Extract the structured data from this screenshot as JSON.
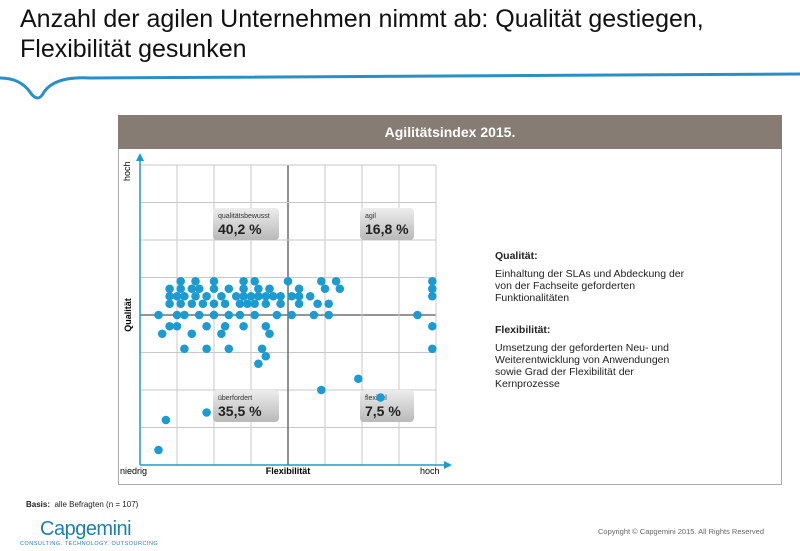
{
  "chart_data": {
    "type": "scatter",
    "title": "Anzahl der agilen Unternehmen nimmt ab: Qualität gestiegen, Flexibilität gesunken",
    "subtitle": "Agilitätsindex 2015.",
    "x_label": "Flexibilität",
    "y_label": "Qualität",
    "x_axis_ends": [
      "niedrig",
      "hoch"
    ],
    "y_axis_end": "hoch",
    "xlim": [
      0,
      8
    ],
    "ylim": [
      0,
      8
    ],
    "grid": true,
    "color": "#1a9bd1",
    "x": [
      1.1,
      1.5,
      2.0,
      2.8,
      3.1,
      4.0,
      4.9,
      5.3,
      7.9,
      0.8,
      1.1,
      1.4,
      1.6,
      2.0,
      2.4,
      2.8,
      3.2,
      3.5,
      4.3,
      5.0,
      5.4,
      7.9,
      0.8,
      1.0,
      1.2,
      1.5,
      1.8,
      2.2,
      2.6,
      2.8,
      3.0,
      3.2,
      3.4,
      3.6,
      3.8,
      4.1,
      4.3,
      4.6,
      7.9,
      0.8,
      1.1,
      1.4,
      1.7,
      2.0,
      2.3,
      2.7,
      2.9,
      3.1,
      3.4,
      3.8,
      4.3,
      4.8,
      5.1,
      0.5,
      1.0,
      1.2,
      1.6,
      2.0,
      2.4,
      2.7,
      3.1,
      3.7,
      4.1,
      4.7,
      5.1,
      7.5,
      0.8,
      1.0,
      1.8,
      2.3,
      2.8,
      3.4,
      7.9,
      0.6,
      1.4,
      2.2,
      3.5,
      1.2,
      1.8,
      2.4,
      3.3,
      7.9,
      3.4,
      3.2,
      5.9,
      4.9,
      6.5,
      1.8,
      0.7,
      0.5
    ],
    "y": [
      4.9,
      4.9,
      4.9,
      4.9,
      4.9,
      4.9,
      4.9,
      4.9,
      4.9,
      4.7,
      4.7,
      4.7,
      4.7,
      4.7,
      4.7,
      4.7,
      4.7,
      4.7,
      4.7,
      4.7,
      4.7,
      4.7,
      4.5,
      4.5,
      4.5,
      4.5,
      4.5,
      4.5,
      4.5,
      4.5,
      4.5,
      4.5,
      4.5,
      4.5,
      4.5,
      4.5,
      4.5,
      4.5,
      4.5,
      4.3,
      4.3,
      4.3,
      4.3,
      4.3,
      4.3,
      4.3,
      4.3,
      4.3,
      4.3,
      4.3,
      4.3,
      4.3,
      4.3,
      4.0,
      4.0,
      4.0,
      4.0,
      4.0,
      4.0,
      4.0,
      4.0,
      4.0,
      4.0,
      4.0,
      4.0,
      4.0,
      3.7,
      3.7,
      3.7,
      3.7,
      3.7,
      3.7,
      3.7,
      3.5,
      3.5,
      3.5,
      3.5,
      3.1,
      3.1,
      3.1,
      3.1,
      3.1,
      2.9,
      2.7,
      2.3,
      2.0,
      1.8,
      1.4,
      1.2,
      0.4
    ],
    "annotations": [
      {
        "label": "qualitätsbewusst",
        "value": "40,2 %"
      },
      {
        "label": "agil",
        "value": "16,8 %"
      },
      {
        "label": "überfordert",
        "value": "35,5 %"
      },
      {
        "label": "flexibel",
        "value": "7,5 %"
      }
    ],
    "notes": [
      {
        "heading": "Qualität:",
        "text": "Einhaltung der SLAs und Abdeckung der von der Fachseite geforderten Funktionalitäten"
      },
      {
        "heading": "Flexibilität:",
        "text": "Umsetzung  der geforderten Neu- und Weiterentwicklung von Anwendungen sowie Grad der Flexibilität der Kernprozesse"
      }
    ],
    "footnote_label": "Basis:",
    "footnote": "alle Befragten (n = 107)",
    "copyright": "Copyright © Capgemini 2015. All Rights Reserved",
    "logo": "Capgemini",
    "logo_tagline": "CONSULTING. TECHNOLOGY. OUTSOURCING"
  }
}
